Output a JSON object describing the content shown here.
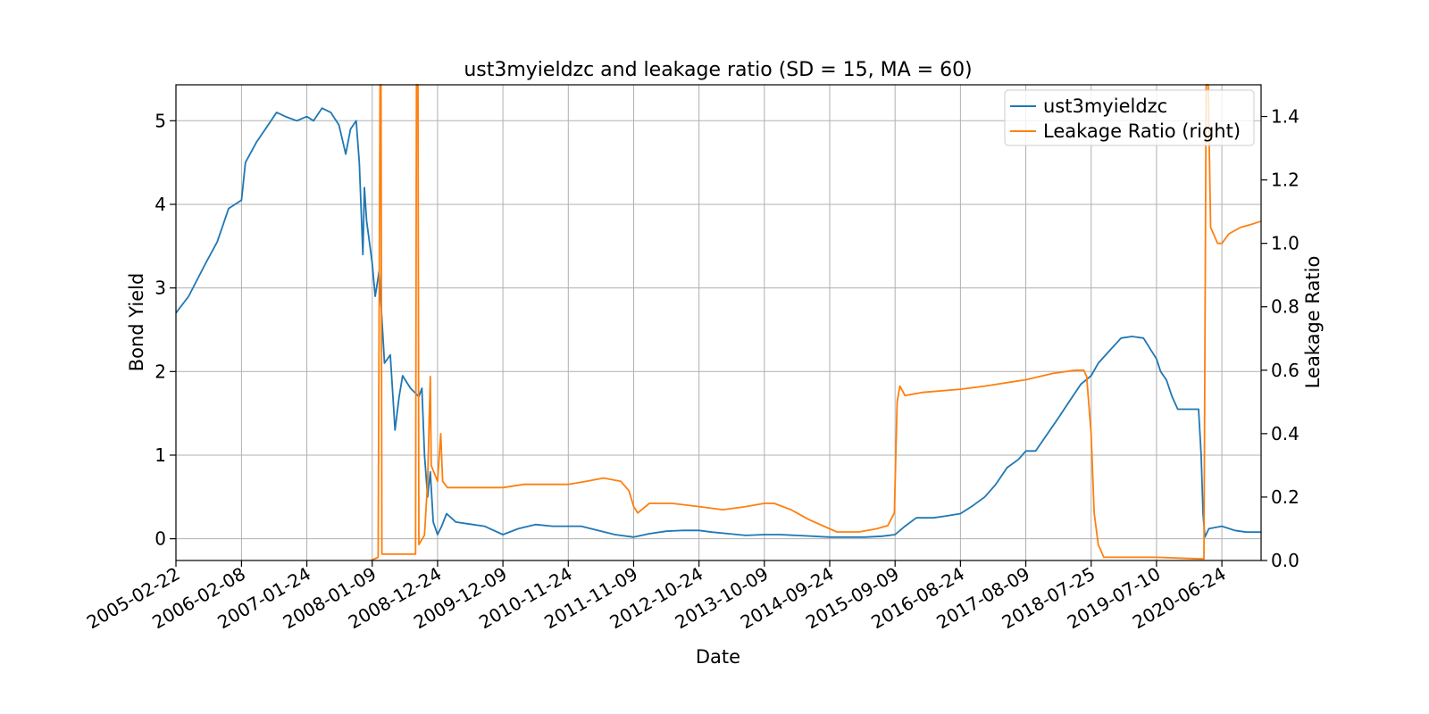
{
  "chart_data": {
    "type": "line",
    "title": "ust3myieldzc and leakage ratio (SD = 15, MA = 60)",
    "xlabel": "Date",
    "ylabel_left": "Bond Yield",
    "ylabel_right": "Leakage Ratio",
    "x_tick_labels": [
      "2005-02-22",
      "2006-02-08",
      "2007-01-24",
      "2008-01-09",
      "2008-12-24",
      "2009-12-09",
      "2010-11-24",
      "2011-11-09",
      "2012-10-24",
      "2013-10-09",
      "2014-09-24",
      "2015-09-09",
      "2016-08-24",
      "2017-08-09",
      "2018-07-25",
      "2019-07-10",
      "2020-06-24"
    ],
    "x_range": [
      "2005-02-22",
      "2021-01-20"
    ],
    "y_left_range": [
      -0.26,
      5.43
    ],
    "y_left_ticks": [
      "0",
      "1",
      "2",
      "3",
      "4",
      "5"
    ],
    "y_right_range": [
      0.0,
      1.5
    ],
    "y_right_ticks": [
      "0.0",
      "0.2",
      "0.4",
      "0.6",
      "0.8",
      "1.0",
      "1.2",
      "1.4"
    ],
    "grid": true,
    "legend_position": "top-right",
    "colors": {
      "yield": "#1f77b4",
      "leakage": "#ff7f0e"
    },
    "series": [
      {
        "name": "ust3myieldzc",
        "axis": "left",
        "points": [
          [
            "2005-02-22",
            2.7
          ],
          [
            "2005-05-01",
            2.9
          ],
          [
            "2005-08-01",
            3.3
          ],
          [
            "2005-10-01",
            3.55
          ],
          [
            "2005-12-01",
            3.95
          ],
          [
            "2006-02-08",
            4.05
          ],
          [
            "2006-03-01",
            4.5
          ],
          [
            "2006-05-01",
            4.75
          ],
          [
            "2006-07-01",
            4.95
          ],
          [
            "2006-08-15",
            5.1
          ],
          [
            "2006-10-01",
            5.05
          ],
          [
            "2006-12-01",
            5.0
          ],
          [
            "2007-01-24",
            5.05
          ],
          [
            "2007-03-01",
            5.0
          ],
          [
            "2007-04-15",
            5.15
          ],
          [
            "2007-06-01",
            5.1
          ],
          [
            "2007-07-15",
            4.95
          ],
          [
            "2007-08-20",
            4.6
          ],
          [
            "2007-09-15",
            4.9
          ],
          [
            "2007-10-15",
            5.0
          ],
          [
            "2007-11-01",
            4.5
          ],
          [
            "2007-11-20",
            3.4
          ],
          [
            "2007-11-28",
            4.2
          ],
          [
            "2007-12-10",
            3.8
          ],
          [
            "2008-01-09",
            3.3
          ],
          [
            "2008-01-25",
            2.9
          ],
          [
            "2008-02-15",
            3.2
          ],
          [
            "2008-03-15",
            2.1
          ],
          [
            "2008-04-15",
            2.2
          ],
          [
            "2008-05-10",
            1.3
          ],
          [
            "2008-06-01",
            1.7
          ],
          [
            "2008-06-20",
            1.95
          ],
          [
            "2008-08-01",
            1.8
          ],
          [
            "2008-09-15",
            1.7
          ],
          [
            "2008-10-01",
            1.8
          ],
          [
            "2008-10-15",
            1.0
          ],
          [
            "2008-11-01",
            0.5
          ],
          [
            "2008-11-15",
            0.8
          ],
          [
            "2008-12-01",
            0.2
          ],
          [
            "2008-12-24",
            0.05
          ],
          [
            "2009-01-15",
            0.15
          ],
          [
            "2009-02-10",
            0.3
          ],
          [
            "2009-04-01",
            0.2
          ],
          [
            "2009-06-01",
            0.18
          ],
          [
            "2009-09-01",
            0.15
          ],
          [
            "2009-12-09",
            0.05
          ],
          [
            "2010-03-01",
            0.12
          ],
          [
            "2010-06-01",
            0.17
          ],
          [
            "2010-09-01",
            0.15
          ],
          [
            "2010-11-24",
            0.15
          ],
          [
            "2011-02-01",
            0.15
          ],
          [
            "2011-05-01",
            0.1
          ],
          [
            "2011-08-01",
            0.05
          ],
          [
            "2011-11-09",
            0.02
          ],
          [
            "2012-02-01",
            0.06
          ],
          [
            "2012-05-01",
            0.09
          ],
          [
            "2012-08-01",
            0.1
          ],
          [
            "2012-10-24",
            0.1
          ],
          [
            "2013-01-01",
            0.08
          ],
          [
            "2013-04-01",
            0.06
          ],
          [
            "2013-07-01",
            0.04
          ],
          [
            "2013-10-09",
            0.05
          ],
          [
            "2014-01-01",
            0.05
          ],
          [
            "2014-04-01",
            0.04
          ],
          [
            "2014-09-24",
            0.02
          ],
          [
            "2015-01-01",
            0.02
          ],
          [
            "2015-04-01",
            0.02
          ],
          [
            "2015-07-01",
            0.03
          ],
          [
            "2015-09-09",
            0.05
          ],
          [
            "2015-11-01",
            0.15
          ],
          [
            "2016-01-01",
            0.25
          ],
          [
            "2016-04-01",
            0.25
          ],
          [
            "2016-06-01",
            0.27
          ],
          [
            "2016-08-24",
            0.3
          ],
          [
            "2016-11-01",
            0.4
          ],
          [
            "2017-01-01",
            0.5
          ],
          [
            "2017-03-01",
            0.65
          ],
          [
            "2017-05-01",
            0.85
          ],
          [
            "2017-07-01",
            0.95
          ],
          [
            "2017-08-09",
            1.05
          ],
          [
            "2017-10-01",
            1.05
          ],
          [
            "2017-12-01",
            1.25
          ],
          [
            "2018-02-01",
            1.45
          ],
          [
            "2018-04-01",
            1.65
          ],
          [
            "2018-06-01",
            1.85
          ],
          [
            "2018-07-25",
            1.95
          ],
          [
            "2018-09-01",
            2.1
          ],
          [
            "2018-11-01",
            2.25
          ],
          [
            "2019-01-01",
            2.4
          ],
          [
            "2019-03-01",
            2.42
          ],
          [
            "2019-05-01",
            2.4
          ],
          [
            "2019-07-10",
            2.15
          ],
          [
            "2019-08-01",
            2.0
          ],
          [
            "2019-09-01",
            1.9
          ],
          [
            "2019-10-01",
            1.7
          ],
          [
            "2019-11-01",
            1.55
          ],
          [
            "2019-12-15",
            1.55
          ],
          [
            "2020-01-15",
            1.55
          ],
          [
            "2020-02-20",
            1.55
          ],
          [
            "2020-03-05",
            1.0
          ],
          [
            "2020-03-15",
            0.3
          ],
          [
            "2020-03-25",
            0.02
          ],
          [
            "2020-04-15",
            0.12
          ],
          [
            "2020-06-24",
            0.15
          ],
          [
            "2020-09-01",
            0.1
          ],
          [
            "2020-11-01",
            0.08
          ],
          [
            "2021-01-20",
            0.08
          ]
        ]
      },
      {
        "name": "Leakage Ratio (right)",
        "axis": "right",
        "points": [
          [
            "2008-01-01",
            0.0
          ],
          [
            "2008-02-10",
            0.01
          ],
          [
            "2008-02-20",
            1.5
          ],
          [
            "2008-02-25",
            1.5
          ],
          [
            "2008-03-01",
            0.02
          ],
          [
            "2008-04-01",
            0.02
          ],
          [
            "2008-05-01",
            0.02
          ],
          [
            "2008-07-01",
            0.02
          ],
          [
            "2008-08-28",
            0.02
          ],
          [
            "2008-09-02",
            1.5
          ],
          [
            "2008-09-10",
            1.5
          ],
          [
            "2008-09-15",
            0.05
          ],
          [
            "2008-10-15",
            0.08
          ],
          [
            "2008-11-01",
            0.25
          ],
          [
            "2008-11-15",
            0.58
          ],
          [
            "2008-11-20",
            0.3
          ],
          [
            "2008-12-24",
            0.25
          ],
          [
            "2009-01-10",
            0.4
          ],
          [
            "2009-01-20",
            0.25
          ],
          [
            "2009-02-15",
            0.23
          ],
          [
            "2009-06-01",
            0.23
          ],
          [
            "2009-12-09",
            0.23
          ],
          [
            "2010-04-01",
            0.24
          ],
          [
            "2010-11-24",
            0.24
          ],
          [
            "2011-03-01",
            0.25
          ],
          [
            "2011-06-01",
            0.26
          ],
          [
            "2011-09-01",
            0.25
          ],
          [
            "2011-10-15",
            0.22
          ],
          [
            "2011-11-09",
            0.17
          ],
          [
            "2011-12-01",
            0.15
          ],
          [
            "2012-02-01",
            0.18
          ],
          [
            "2012-06-01",
            0.18
          ],
          [
            "2012-10-24",
            0.17
          ],
          [
            "2013-03-01",
            0.16
          ],
          [
            "2013-07-01",
            0.17
          ],
          [
            "2013-10-09",
            0.18
          ],
          [
            "2013-12-01",
            0.18
          ],
          [
            "2014-03-01",
            0.16
          ],
          [
            "2014-06-01",
            0.13
          ],
          [
            "2014-09-24",
            0.1
          ],
          [
            "2014-11-01",
            0.09
          ],
          [
            "2015-03-01",
            0.09
          ],
          [
            "2015-06-01",
            0.1
          ],
          [
            "2015-08-01",
            0.11
          ],
          [
            "2015-09-05",
            0.15
          ],
          [
            "2015-09-20",
            0.5
          ],
          [
            "2015-10-05",
            0.55
          ],
          [
            "2015-11-01",
            0.52
          ],
          [
            "2016-02-01",
            0.53
          ],
          [
            "2016-08-24",
            0.54
          ],
          [
            "2017-01-01",
            0.55
          ],
          [
            "2017-08-09",
            0.57
          ],
          [
            "2018-01-01",
            0.59
          ],
          [
            "2018-05-01",
            0.6
          ],
          [
            "2018-06-15",
            0.6
          ],
          [
            "2018-07-01",
            0.58
          ],
          [
            "2018-07-25",
            0.4
          ],
          [
            "2018-08-10",
            0.15
          ],
          [
            "2018-09-01",
            0.05
          ],
          [
            "2018-10-01",
            0.01
          ],
          [
            "2018-12-01",
            0.01
          ],
          [
            "2019-07-10",
            0.01
          ],
          [
            "2020-03-01",
            0.005
          ],
          [
            "2020-03-20",
            0.005
          ],
          [
            "2020-04-01",
            1.5
          ],
          [
            "2020-04-12",
            1.5
          ],
          [
            "2020-04-25",
            1.05
          ],
          [
            "2020-05-10",
            1.03
          ],
          [
            "2020-06-01",
            1.0
          ],
          [
            "2020-06-24",
            1.0
          ],
          [
            "2020-08-01",
            1.03
          ],
          [
            "2020-10-01",
            1.05
          ],
          [
            "2020-12-01",
            1.06
          ],
          [
            "2021-01-20",
            1.07
          ]
        ]
      }
    ]
  }
}
